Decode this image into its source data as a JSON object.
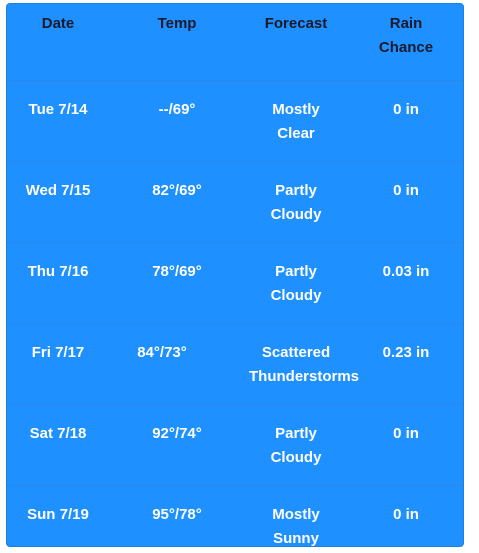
{
  "headers": {
    "date": "Date",
    "temp": "Temp",
    "forecast": "Forecast",
    "rain_line1": "Rain",
    "rain_line2": "Chance"
  },
  "rows": [
    {
      "date": "Tue 7/14",
      "temp": "--/69°",
      "forecast_line1": "Mostly",
      "forecast_line2": "Clear",
      "rain": "0 in"
    },
    {
      "date": "Wed 7/15",
      "temp": "82°/69°",
      "forecast_line1": "Partly",
      "forecast_line2": "Cloudy",
      "rain": "0 in"
    },
    {
      "date": "Thu 7/16",
      "temp": "78°/69°",
      "forecast_line1": "Partly",
      "forecast_line2": "Cloudy",
      "rain": "0.03 in"
    },
    {
      "date": "Fri 7/17",
      "temp": "84°/73°",
      "forecast_line1": "Scattered",
      "forecast_line2": "Thunderstorms",
      "rain": "0.23 in"
    },
    {
      "date": "Sat 7/18",
      "temp": "92°/74°",
      "forecast_line1": "Partly",
      "forecast_line2": "Cloudy",
      "rain": "0 in"
    },
    {
      "date": "Sun 7/19",
      "temp": "95°/78°",
      "forecast_line1": "Mostly",
      "forecast_line2": "Sunny",
      "rain": "0 in"
    }
  ],
  "colors": {
    "panel_background": "#1e90ff",
    "header_text": "#1a1a2a",
    "cell_text": "#ffffff"
  }
}
